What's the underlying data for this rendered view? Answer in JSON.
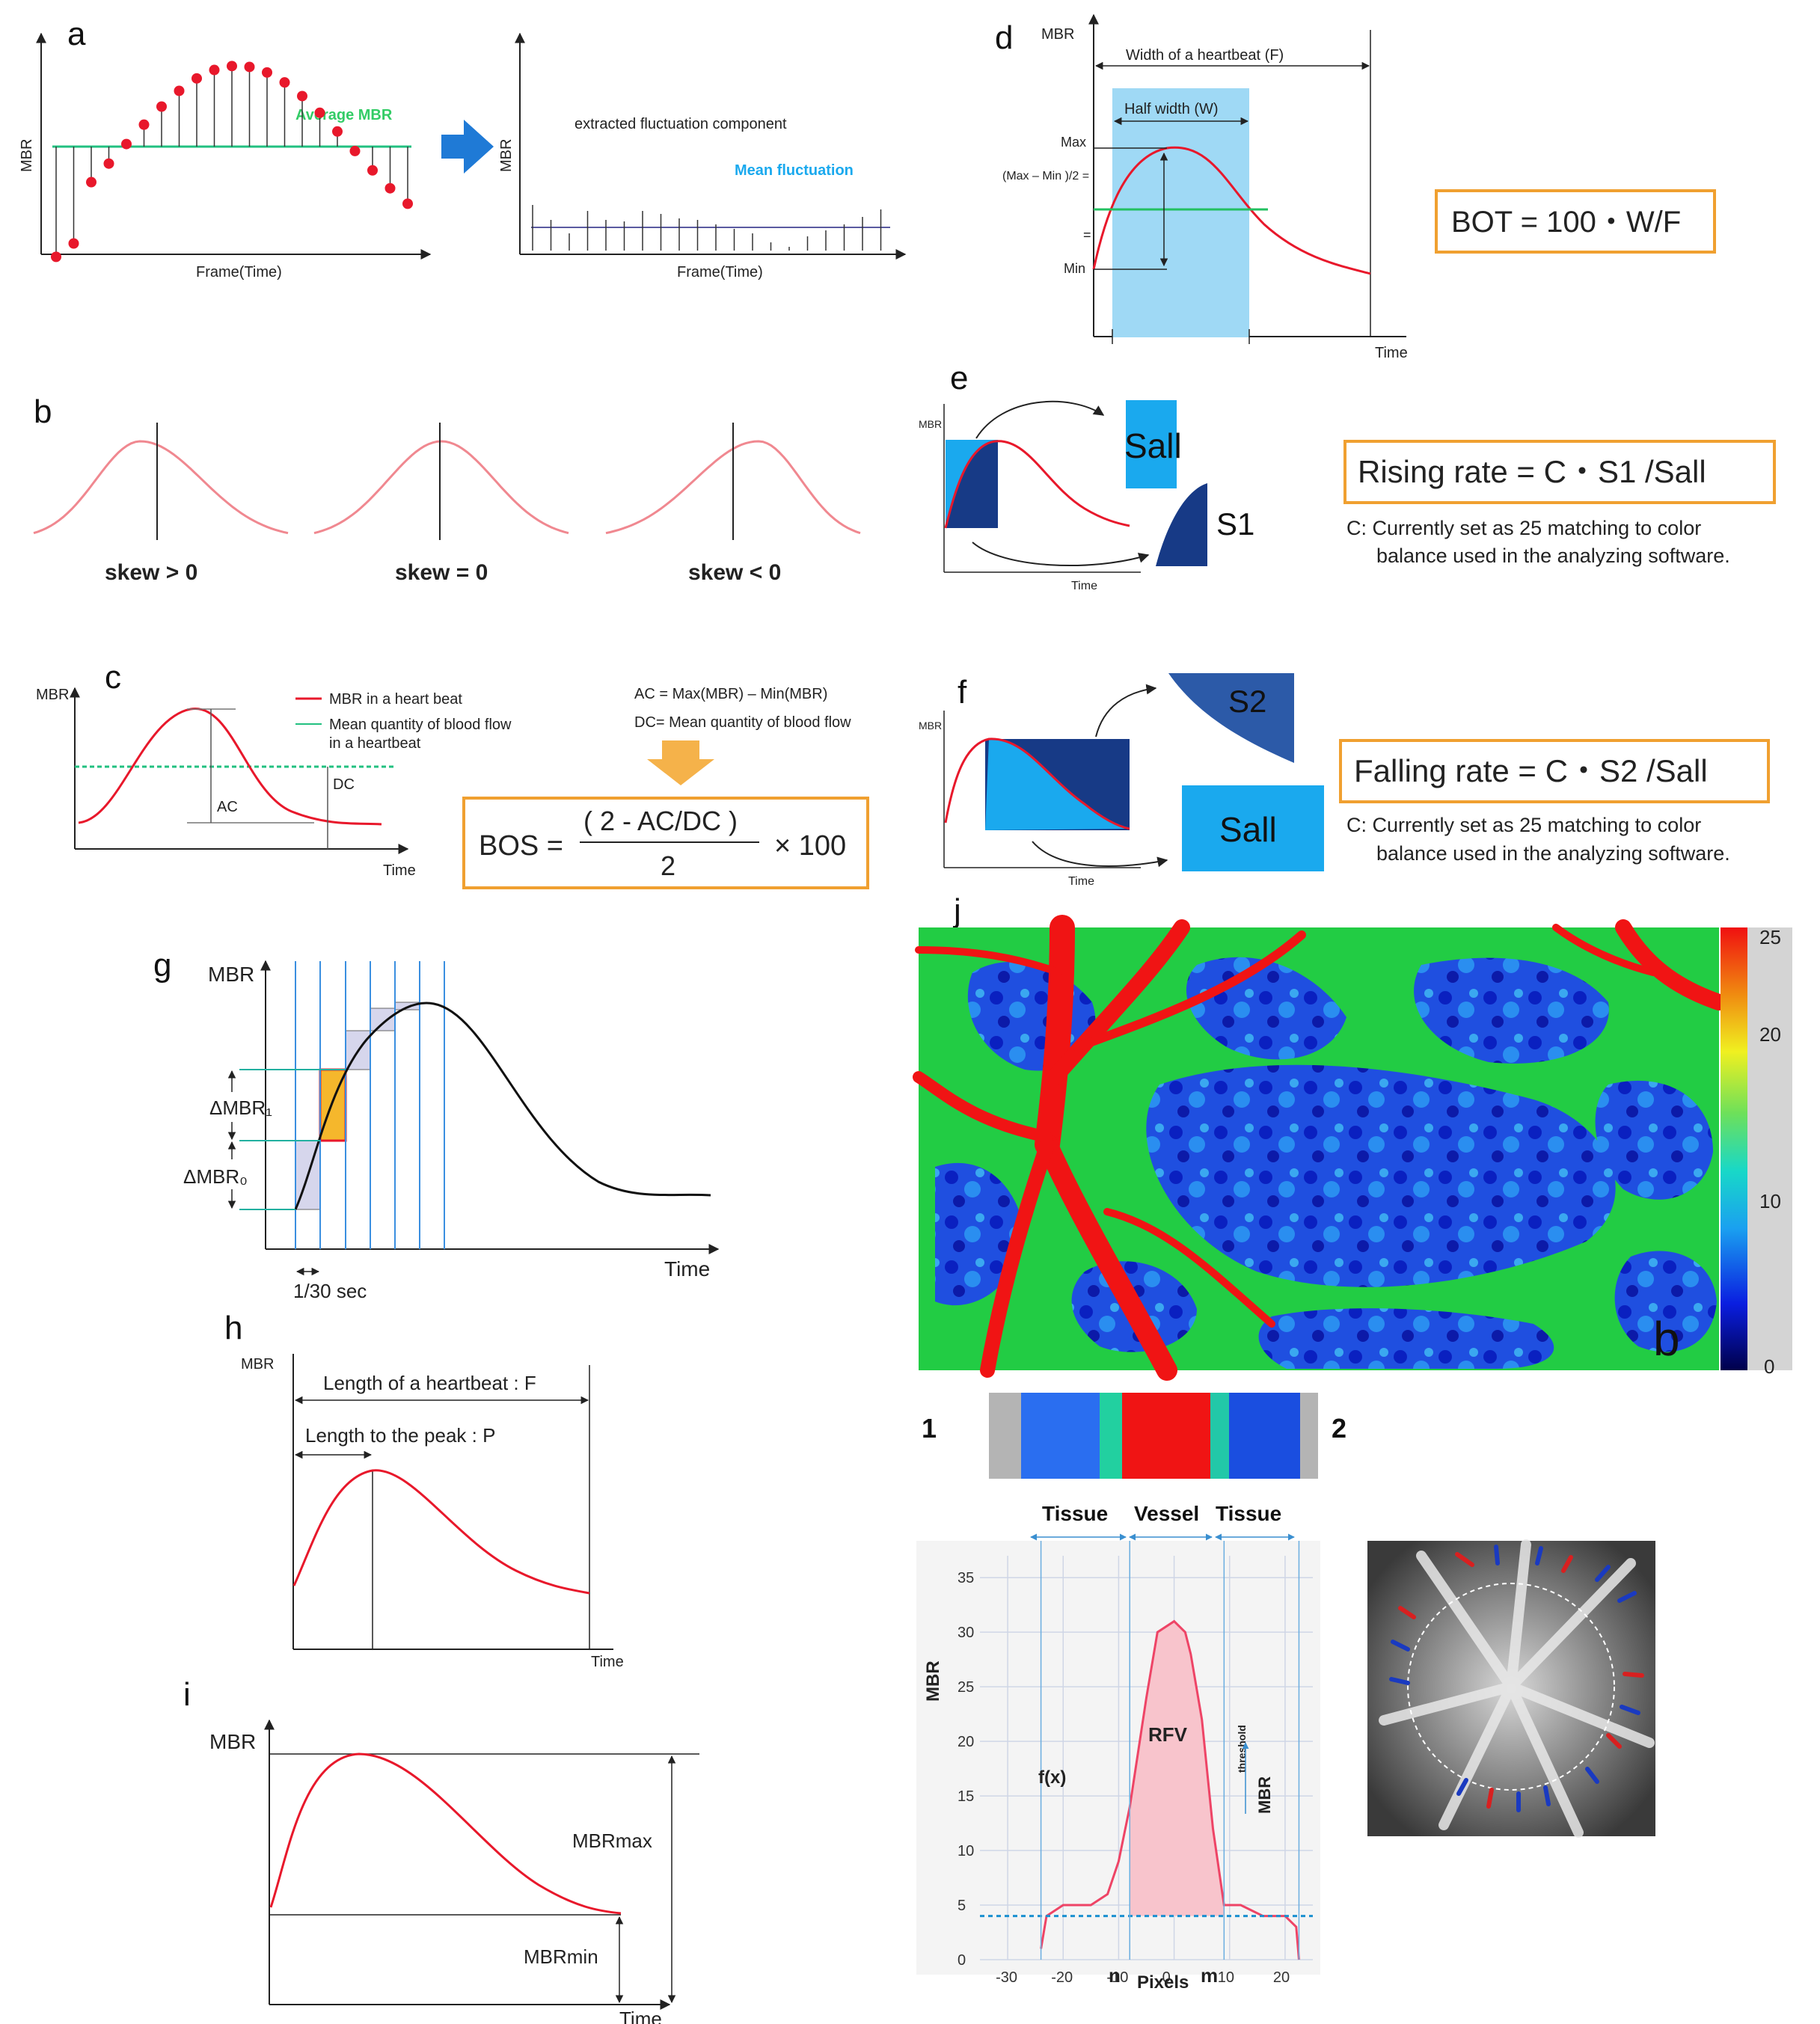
{
  "panels": {
    "a": {
      "letter": "a",
      "ylabel": "MBR",
      "xlabel": "Frame(Time)",
      "avg_label": "Average MBR",
      "ylabel2": "MBR",
      "xlabel2": "Frame(Time)",
      "extract_label": "extracted fluctuation component",
      "mean_label": "Mean fluctuation"
    },
    "b": {
      "letter": "b",
      "labels": [
        "skew > 0",
        "skew = 0",
        "skew < 0"
      ]
    },
    "c": {
      "letter": "c",
      "ylabel": "MBR",
      "xlabel": "Time",
      "legend_red": "MBR in a heart beat",
      "legend_green_1": "Mean quantity of blood flow",
      "legend_green_2": "in a heartbeat",
      "ac": "AC",
      "dc": "DC",
      "def1": "AC = Max(MBR) – Min(MBR)",
      "def2": "DC= Mean quantity of blood flow",
      "f_lhs": "BOS =",
      "f_num": "( 2 - AC/DC )",
      "f_den": "2",
      "f_rhs": "× 100"
    },
    "d": {
      "letter": "d",
      "ylabel": "MBR",
      "xlabel": "Time",
      "width": "Width of a heartbeat  (F)",
      "half": "Half width  (W)",
      "max": "Max",
      "mid": "(Max – Min )/2 =",
      "eq": "=",
      "min": "Min",
      "formula": "BOT = 100・W/F"
    },
    "e": {
      "letter": "e",
      "ylabel": "MBR",
      "xlabel": "Time",
      "sall": "Sall",
      "s1": "S1",
      "formula": "Rising rate =  C・S1 /Sall",
      "note1": "C: Currently set as 25 matching to color",
      "note2": "balance used in the analyzing software."
    },
    "f": {
      "letter": "f",
      "ylabel": "MBR",
      "xlabel": "Time",
      "s2": "S2",
      "sall": "Sall",
      "formula": "Falling rate =  C・S2 /Sall",
      "note1": "C: Currently set as 25 matching to color",
      "note2": "balance used in the analyzing software."
    },
    "g": {
      "letter": "g",
      "ylabel": "MBR",
      "xlabel": "Time",
      "d1": "ΔMBR₁",
      "d0": "ΔMBR₀",
      "dt": "1/30 sec"
    },
    "h": {
      "letter": "h",
      "ylabel": "MBR",
      "xlabel": "Time",
      "len": "Length of a heartbeat : F",
      "peak": "Length to the peak : P"
    },
    "i": {
      "letter": "i",
      "ylabel": "MBR",
      "xlabel": "Time",
      "max": "MBRmax",
      "min": "MBRmin"
    },
    "j": {
      "letter": "j",
      "corner": "b",
      "ticks": [
        "25",
        "20",
        "10",
        "0"
      ],
      "n1": "1",
      "n2": "2",
      "tissue": "Tissue",
      "vessel": "Vessel",
      "ylabel": "MBR",
      "xlabel": "Pixels",
      "fx": "f(x)",
      "rfv": "RFV",
      "thresh": "MBR",
      "thresh_sub": "threshold",
      "n": "n",
      "m": "m",
      "yticks": [
        "35",
        "30",
        "25",
        "20",
        "15",
        "10",
        "5",
        "0"
      ],
      "xticks": [
        "-30",
        "-20",
        "-10",
        "0",
        "10",
        "20"
      ]
    }
  },
  "colors": {
    "red": "#e8182b",
    "pink_curve": "#f08890",
    "green": "#22c080",
    "blue": "#1f7ad6",
    "cyan_box": "#9fd9f5",
    "orange": "#f0a030",
    "darkblue": "#173a86",
    "sky": "#1aa9ee"
  }
}
